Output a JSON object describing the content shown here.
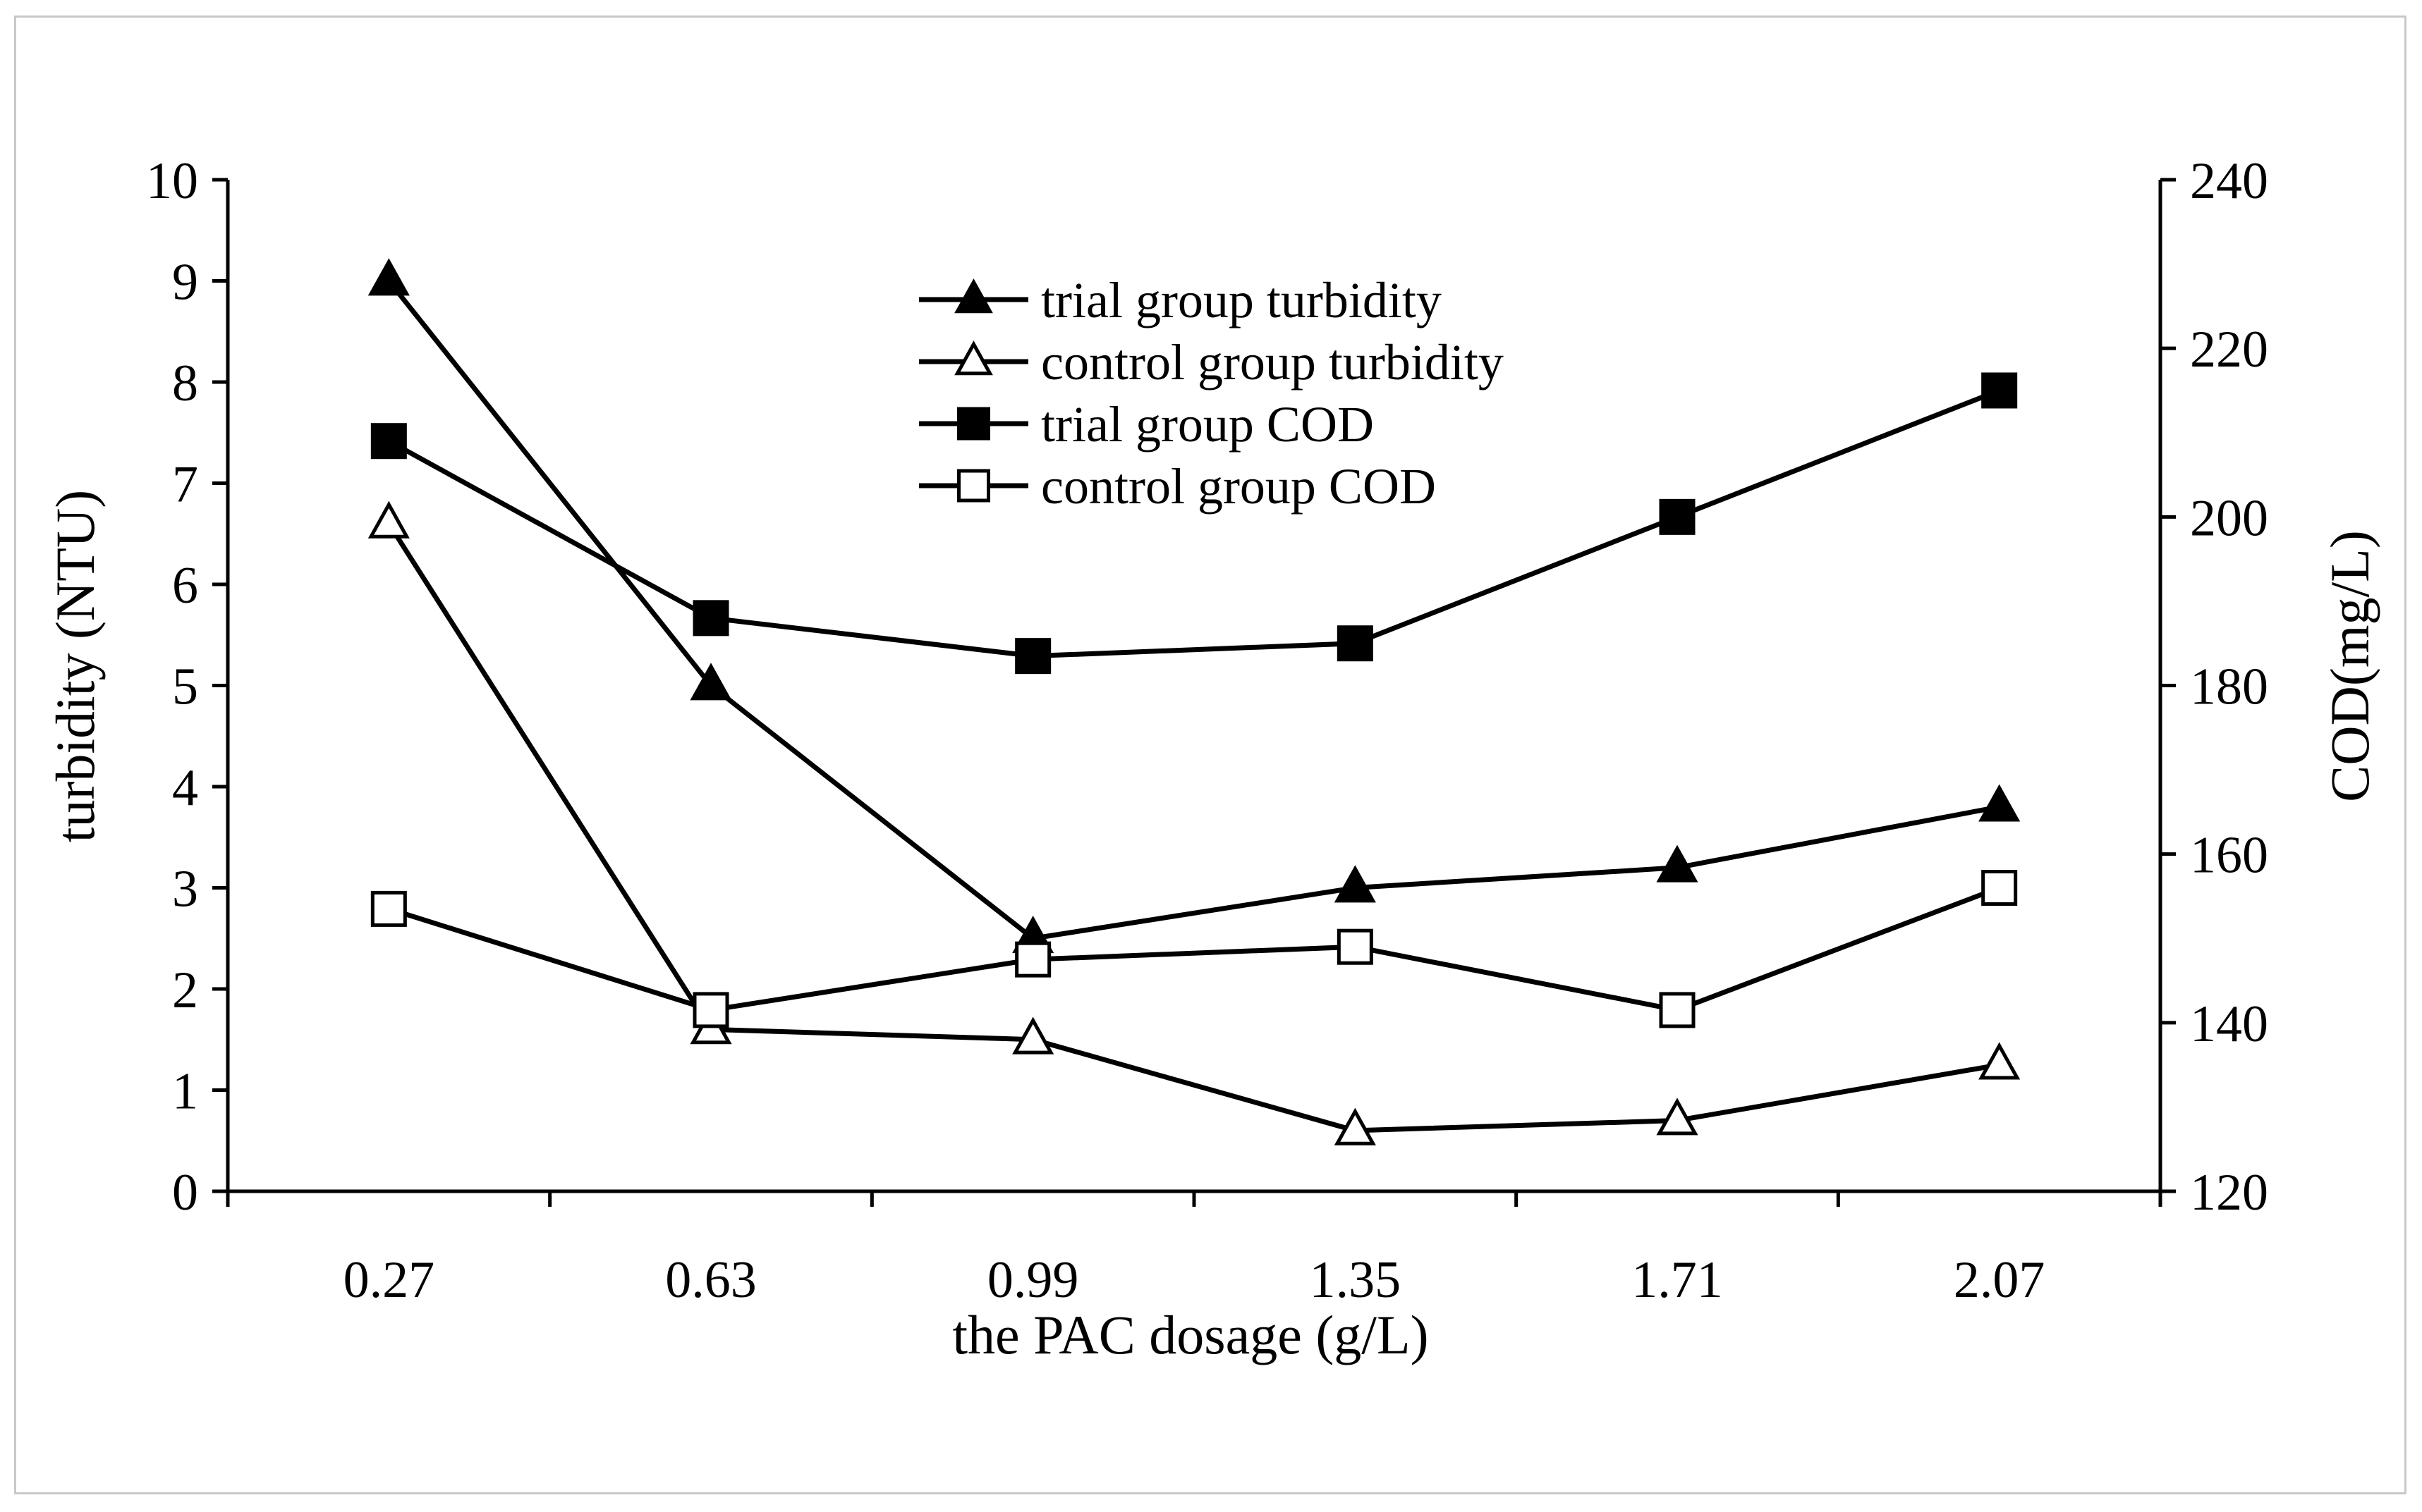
{
  "chart_data": {
    "type": "line",
    "xlabel": "the PAC dosage (g/L)",
    "ylabel_left": "turbidity (NTU)",
    "ylabel_right": "COD(mg/L)",
    "categories": [
      "0.27",
      "0.63",
      "0.99",
      "1.35",
      "1.71",
      "2.07"
    ],
    "y_left_range": [
      0,
      10
    ],
    "y_left_ticks": [
      "0",
      "1",
      "2",
      "3",
      "4",
      "5",
      "6",
      "7",
      "8",
      "9",
      "10"
    ],
    "y_right_range": [
      120,
      240
    ],
    "y_right_ticks": [
      "120",
      "140",
      "160",
      "180",
      "200",
      "220",
      "240"
    ],
    "grid": false,
    "legend_position": "top-center",
    "series": [
      {
        "name": "trial group turbidity",
        "axis": "left",
        "marker": "filled-triangle",
        "values": [
          9.0,
          5.0,
          2.5,
          3.0,
          3.2,
          3.8
        ]
      },
      {
        "name": "control group turbidity",
        "axis": "left",
        "marker": "open-triangle",
        "values": [
          6.6,
          1.6,
          1.5,
          0.6,
          0.7,
          1.25
        ]
      },
      {
        "name": "trial group COD",
        "axis": "right",
        "marker": "filled-square",
        "values": [
          209,
          188,
          183.5,
          185,
          200,
          215
        ]
      },
      {
        "name": "control group COD",
        "axis": "right",
        "marker": "open-square",
        "values": [
          153.5,
          141.5,
          147.5,
          149,
          141.5,
          156
        ]
      }
    ]
  }
}
